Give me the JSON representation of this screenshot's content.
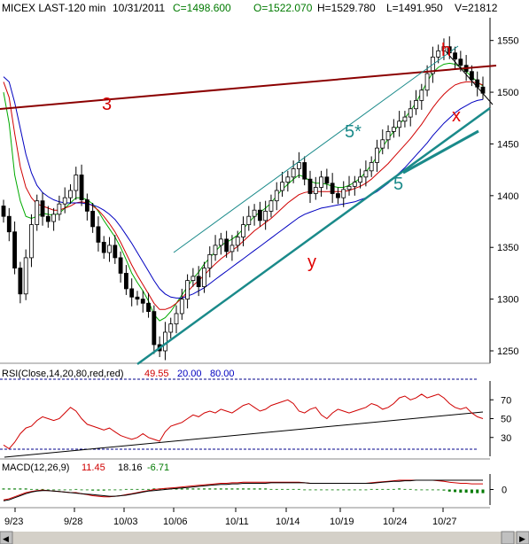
{
  "header": {
    "symbol": "MICEX LAST-120 min",
    "date": "10/31/2011",
    "close": "C=1498.600",
    "open": "O=1522.070",
    "high": "H=1529.780",
    "low": "L=1491.950",
    "volume": "V=21812"
  },
  "chart_data": [
    {
      "type": "candlestick",
      "title": "MICEX LAST-120 min",
      "y_axis_ticks": [
        "1550",
        "1500",
        "1450",
        "1400",
        "1350",
        "1300",
        "1250"
      ],
      "ylim": [
        1238,
        1572
      ],
      "x_axis_ticks": [
        "9/23",
        "9/28",
        "10/03",
        "10/06",
        "10/11",
        "10/14",
        "10/19",
        "10/24",
        "10/27"
      ],
      "close_series": [
        1380,
        1365,
        1330,
        1305,
        1340,
        1372,
        1395,
        1380,
        1375,
        1382,
        1392,
        1398,
        1405,
        1420,
        1396,
        1385,
        1370,
        1355,
        1345,
        1352,
        1340,
        1325,
        1310,
        1302,
        1300,
        1296,
        1288,
        1256,
        1250,
        1268,
        1276,
        1286,
        1300,
        1318,
        1322,
        1312,
        1330,
        1343,
        1352,
        1358,
        1346,
        1352,
        1360,
        1372,
        1380,
        1386,
        1376,
        1385,
        1395,
        1405,
        1413,
        1418,
        1426,
        1432,
        1416,
        1402,
        1408,
        1418,
        1412,
        1402,
        1398,
        1406,
        1409,
        1413,
        1418,
        1424,
        1432,
        1446,
        1454,
        1462,
        1466,
        1472,
        1476,
        1484,
        1492,
        1502,
        1518,
        1534,
        1540,
        1544,
        1538,
        1532,
        1526,
        1520,
        1512,
        1505,
        1499
      ],
      "moving_averages": [
        {
          "color": "#00aa00",
          "values": [
            1500,
            1470,
            1420,
            1395,
            1380,
            1378,
            1380,
            1383,
            1382,
            1381,
            1383,
            1388,
            1393,
            1398,
            1398,
            1396,
            1392,
            1385,
            1376,
            1368,
            1360,
            1350,
            1338,
            1325,
            1316,
            1308,
            1298,
            1285,
            1279,
            1282,
            1288,
            1296,
            1304,
            1312,
            1320,
            1326,
            1334,
            1340,
            1346,
            1352,
            1355,
            1358,
            1362,
            1368,
            1374,
            1380,
            1384,
            1388,
            1393,
            1400,
            1406,
            1411,
            1416,
            1420,
            1418,
            1414,
            1412,
            1412,
            1411,
            1409,
            1408,
            1408,
            1410,
            1413,
            1417,
            1423,
            1430,
            1438,
            1447,
            1455,
            1462,
            1469,
            1475,
            1482,
            1490,
            1500,
            1510,
            1519,
            1524,
            1527,
            1528,
            1527,
            1524,
            1520,
            1515,
            1510,
            1506
          ]
        },
        {
          "color": "#d00000",
          "values": [
            1510,
            1495,
            1460,
            1428,
            1408,
            1398,
            1392,
            1390,
            1388,
            1386,
            1386,
            1388,
            1390,
            1393,
            1394,
            1393,
            1390,
            1386,
            1380,
            1373,
            1365,
            1355,
            1344,
            1333,
            1323,
            1314,
            1305,
            1296,
            1290,
            1290,
            1292,
            1296,
            1301,
            1307,
            1313,
            1318,
            1323,
            1329,
            1334,
            1339,
            1343,
            1347,
            1351,
            1356,
            1361,
            1366,
            1370,
            1374,
            1378,
            1383,
            1388,
            1393,
            1397,
            1401,
            1403,
            1404,
            1404,
            1404,
            1404,
            1404,
            1404,
            1404,
            1405,
            1407,
            1409,
            1412,
            1416,
            1421,
            1426,
            1431,
            1437,
            1443,
            1449,
            1455,
            1462,
            1469,
            1477,
            1485,
            1492,
            1498,
            1503,
            1507,
            1509,
            1510,
            1510,
            1509,
            1507
          ]
        },
        {
          "color": "#0000c0",
          "values": [
            1515,
            1510,
            1490,
            1465,
            1440,
            1422,
            1410,
            1403,
            1399,
            1396,
            1394,
            1393,
            1393,
            1393,
            1393,
            1392,
            1391,
            1389,
            1386,
            1382,
            1377,
            1370,
            1362,
            1354,
            1345,
            1336,
            1327,
            1318,
            1310,
            1305,
            1302,
            1301,
            1301,
            1303,
            1305,
            1308,
            1311,
            1315,
            1319,
            1323,
            1327,
            1331,
            1335,
            1339,
            1343,
            1347,
            1351,
            1355,
            1359,
            1363,
            1367,
            1371,
            1375,
            1379,
            1382,
            1384,
            1386,
            1388,
            1389,
            1390,
            1391,
            1392,
            1393,
            1394,
            1396,
            1398,
            1401,
            1404,
            1408,
            1412,
            1417,
            1422,
            1427,
            1433,
            1439,
            1445,
            1451,
            1458,
            1464,
            1470,
            1475,
            1480,
            1484,
            1487,
            1490,
            1492,
            1493
          ]
        }
      ]
    },
    {
      "type": "line",
      "title": "RSI(Close,14,20,80,red,red)",
      "values_text": [
        "49.55",
        "20.00",
        "80.00"
      ],
      "y_axis_ticks": [
        "70",
        "50",
        "30"
      ],
      "ylim": [
        10,
        90
      ],
      "series": [
        {
          "color": "#d00000",
          "values": [
            22,
            18,
            25,
            34,
            40,
            42,
            48,
            52,
            50,
            48,
            50,
            56,
            62,
            58,
            50,
            44,
            42,
            40,
            38,
            40,
            36,
            32,
            30,
            28,
            30,
            34,
            30,
            28,
            26,
            36,
            42,
            44,
            46,
            50,
            54,
            52,
            56,
            58,
            56,
            60,
            58,
            56,
            60,
            64,
            66,
            62,
            58,
            60,
            64,
            66,
            68,
            70,
            66,
            58,
            56,
            60,
            62,
            54,
            50,
            56,
            60,
            58,
            56,
            58,
            60,
            62,
            66,
            64,
            60,
            62,
            66,
            72,
            74,
            70,
            72,
            76,
            72,
            74,
            76,
            72,
            66,
            62,
            60,
            62,
            56,
            52,
            50
          ]
        }
      ]
    },
    {
      "type": "bar",
      "title": "MACD(12,26,9)",
      "values_text": [
        "11.45",
        "18.16",
        "-6.71"
      ],
      "y_axis_ticks": [
        "0"
      ],
      "ylim": [
        -30,
        30
      ],
      "series": [
        {
          "name": "11.45",
          "color": "#d00000",
          "values": [
            -20,
            -18,
            -14,
            -10,
            -6,
            -4,
            -2,
            -1,
            -2,
            -3,
            -4,
            -5,
            -6,
            -6,
            -8,
            -10,
            -12,
            -13,
            -14,
            -14,
            -13,
            -12,
            -10,
            -8,
            -6,
            -4,
            -2,
            0,
            1,
            2,
            3,
            4,
            5,
            6,
            7,
            8,
            9,
            10,
            11,
            12,
            12,
            13,
            13,
            14,
            14,
            14,
            14,
            14,
            14,
            14,
            14,
            14,
            14,
            14,
            13,
            12,
            12,
            12,
            12,
            12,
            12,
            12,
            12,
            12,
            12,
            12,
            13,
            14,
            15,
            16,
            17,
            18,
            18,
            18,
            18,
            18,
            18,
            18,
            17,
            16,
            14,
            13,
            12,
            12,
            11,
            11,
            11
          ]
        },
        {
          "name": "18.16",
          "color": "#000000",
          "values": [
            -22,
            -20,
            -16,
            -12,
            -8,
            -5,
            -3,
            -2,
            -2,
            -3,
            -4,
            -5,
            -6,
            -7,
            -8,
            -9,
            -10,
            -11,
            -12,
            -13,
            -13,
            -12,
            -11,
            -9,
            -7,
            -5,
            -3,
            -2,
            -1,
            0,
            1,
            2,
            3,
            4,
            5,
            6,
            7,
            8,
            9,
            10,
            10,
            11,
            11,
            12,
            12,
            12,
            12,
            12,
            13,
            13,
            13,
            13,
            13,
            13,
            13,
            12,
            12,
            12,
            12,
            12,
            12,
            12,
            12,
            12,
            12,
            12,
            12,
            13,
            14,
            15,
            16,
            16,
            17,
            17,
            18,
            18,
            18,
            18,
            18,
            18,
            18,
            18,
            18,
            18,
            18,
            18,
            18
          ]
        },
        {
          "name": "-6.71",
          "color": "#007a00",
          "values": [
            2,
            2,
            2,
            2,
            2,
            1,
            1,
            1,
            0,
            0,
            0,
            0,
            0,
            1,
            0,
            -1,
            -2,
            -2,
            -2,
            -1,
            0,
            0,
            1,
            1,
            1,
            1,
            1,
            2,
            2,
            2,
            2,
            2,
            2,
            2,
            2,
            2,
            2,
            2,
            2,
            2,
            2,
            2,
            2,
            2,
            2,
            2,
            2,
            2,
            1,
            1,
            1,
            1,
            1,
            1,
            0,
            0,
            0,
            0,
            0,
            0,
            0,
            0,
            0,
            0,
            0,
            0,
            1,
            1,
            1,
            1,
            1,
            2,
            1,
            1,
            0,
            0,
            0,
            0,
            -1,
            -2,
            -4,
            -5,
            -6,
            -6,
            -7,
            -7,
            -7
          ]
        }
      ]
    }
  ],
  "annotations": {
    "wave3": "3",
    "wave5star": "5*",
    "wave5": "5",
    "wave_y": "y",
    "wave_h": "h",
    "wave_x": "x"
  },
  "colors": {
    "candle_up": "#ffffff",
    "candle_down": "#000000",
    "trend_teal": "#1a8a8a",
    "trend_brown": "#8b0000"
  }
}
